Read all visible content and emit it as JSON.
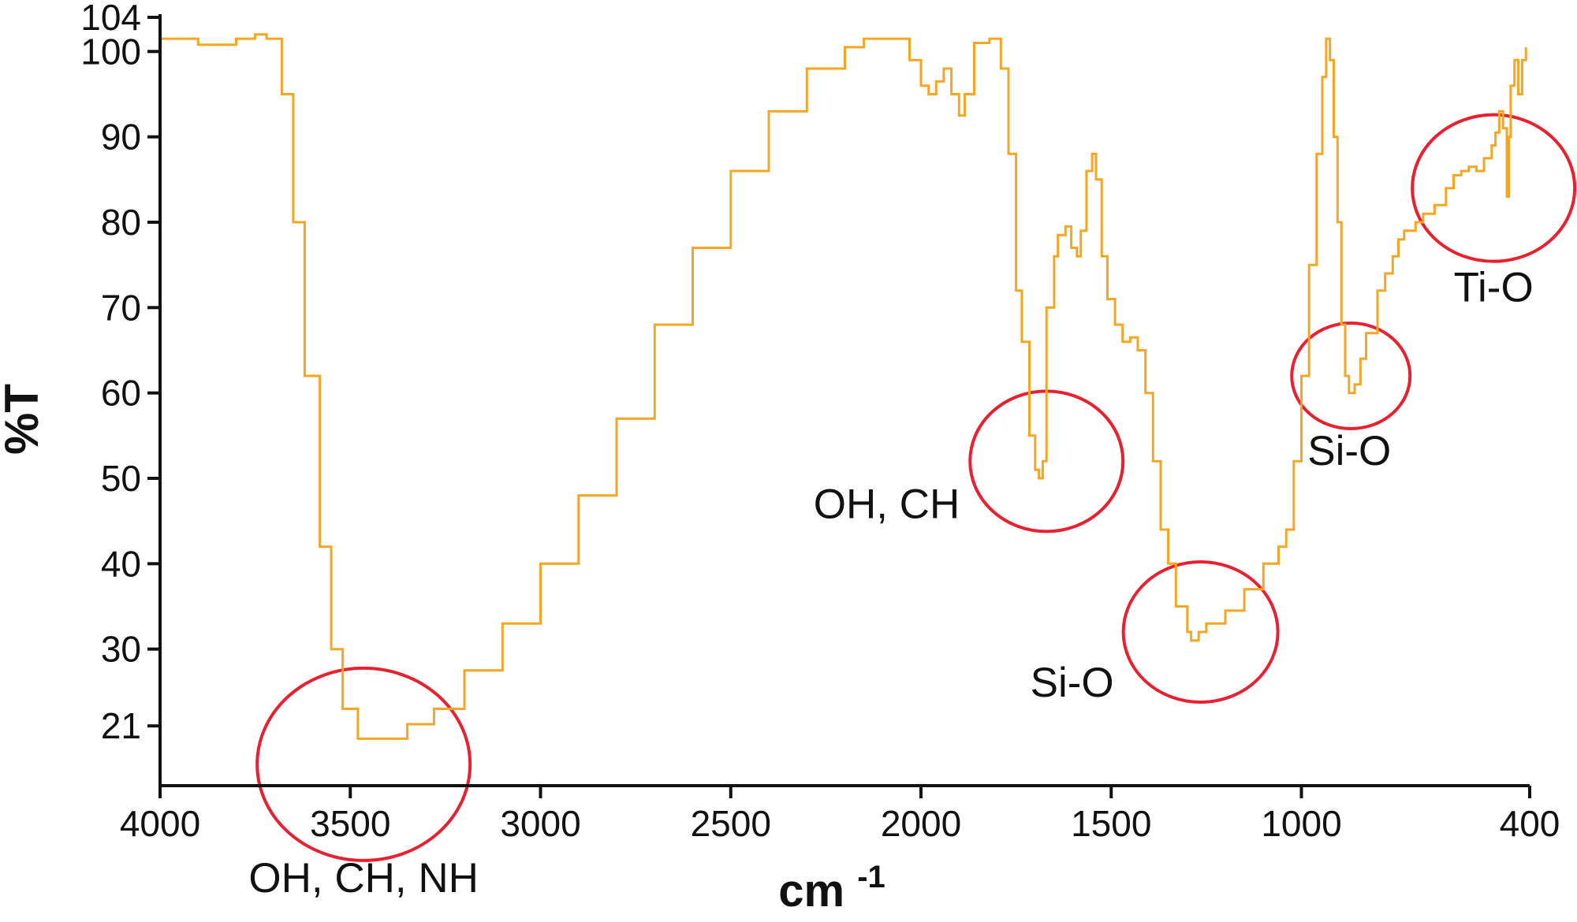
{
  "colors": {
    "series": "#F5A623",
    "annotation": "#E8202F",
    "axis": "#111111",
    "background": "#ffffff"
  },
  "chart_data": {
    "type": "line",
    "title": "",
    "xlabel": "cm",
    "xlabel_superscript": "-1",
    "ylabel": "%T",
    "xlim": [
      4000,
      400
    ],
    "x_reversed": true,
    "ylim": [
      14,
      104
    ],
    "grid": false,
    "legend": "none",
    "x_ticks": [
      4000,
      3500,
      3000,
      2500,
      2000,
      1500,
      1000,
      400
    ],
    "y_ticks": [
      104,
      100,
      90,
      80,
      70,
      60,
      50,
      40,
      30,
      21
    ],
    "series": [
      {
        "values": [
          [
            4000,
            101.5
          ],
          [
            3900,
            100.8
          ],
          [
            3800,
            101.5
          ],
          [
            3750,
            102
          ],
          [
            3720,
            101.5
          ],
          [
            3680,
            95
          ],
          [
            3650,
            80
          ],
          [
            3620,
            62
          ],
          [
            3580,
            42
          ],
          [
            3550,
            30
          ],
          [
            3520,
            23
          ],
          [
            3480,
            19.5
          ],
          [
            3420,
            19.5
          ],
          [
            3350,
            21.2
          ],
          [
            3280,
            23
          ],
          [
            3200,
            27.5
          ],
          [
            3100,
            33
          ],
          [
            3000,
            40
          ],
          [
            2900,
            48
          ],
          [
            2800,
            57
          ],
          [
            2700,
            68
          ],
          [
            2600,
            77
          ],
          [
            2500,
            86
          ],
          [
            2400,
            93
          ],
          [
            2300,
            98
          ],
          [
            2200,
            100.5
          ],
          [
            2150,
            101.5
          ],
          [
            2070,
            101.5
          ],
          [
            2030,
            99
          ],
          [
            2000,
            96
          ],
          [
            1980,
            95
          ],
          [
            1960,
            96.5
          ],
          [
            1940,
            98
          ],
          [
            1920,
            95
          ],
          [
            1900,
            92.5
          ],
          [
            1885,
            95
          ],
          [
            1860,
            101
          ],
          [
            1820,
            101.5
          ],
          [
            1800,
            101.5
          ],
          [
            1790,
            98
          ],
          [
            1770,
            88
          ],
          [
            1750,
            72
          ],
          [
            1735,
            66
          ],
          [
            1715,
            55
          ],
          [
            1700,
            51
          ],
          [
            1690,
            50
          ],
          [
            1680,
            52
          ],
          [
            1670,
            70
          ],
          [
            1650,
            76
          ],
          [
            1640,
            78.5
          ],
          [
            1620,
            79.5
          ],
          [
            1605,
            77
          ],
          [
            1590,
            76
          ],
          [
            1580,
            79
          ],
          [
            1565,
            86
          ],
          [
            1550,
            88
          ],
          [
            1540,
            85
          ],
          [
            1525,
            76
          ],
          [
            1510,
            71
          ],
          [
            1490,
            68
          ],
          [
            1470,
            66
          ],
          [
            1450,
            66.5
          ],
          [
            1430,
            65
          ],
          [
            1410,
            60
          ],
          [
            1390,
            52
          ],
          [
            1370,
            44
          ],
          [
            1350,
            40
          ],
          [
            1330,
            35
          ],
          [
            1300,
            32
          ],
          [
            1290,
            31
          ],
          [
            1270,
            32
          ],
          [
            1250,
            33
          ],
          [
            1200,
            34.5
          ],
          [
            1150,
            37
          ],
          [
            1100,
            40
          ],
          [
            1060,
            42
          ],
          [
            1040,
            44
          ],
          [
            1020,
            52
          ],
          [
            1000,
            62
          ],
          [
            980,
            75
          ],
          [
            960,
            88
          ],
          [
            945,
            97
          ],
          [
            935,
            101.5
          ],
          [
            925,
            99
          ],
          [
            915,
            90
          ],
          [
            905,
            80
          ],
          [
            895,
            68
          ],
          [
            885,
            62
          ],
          [
            875,
            60
          ],
          [
            860,
            61
          ],
          [
            845,
            64
          ],
          [
            830,
            67
          ],
          [
            800,
            72
          ],
          [
            780,
            74
          ],
          [
            760,
            76
          ],
          [
            745,
            78
          ],
          [
            730,
            79
          ],
          [
            700,
            80
          ],
          [
            680,
            81
          ],
          [
            650,
            82
          ],
          [
            620,
            84
          ],
          [
            600,
            85.5
          ],
          [
            580,
            86
          ],
          [
            560,
            86.5
          ],
          [
            540,
            86
          ],
          [
            520,
            87.5
          ],
          [
            500,
            89
          ],
          [
            490,
            90.5
          ],
          [
            480,
            93
          ],
          [
            470,
            91
          ],
          [
            460,
            83
          ],
          [
            455,
            90
          ],
          [
            450,
            96
          ],
          [
            440,
            99
          ],
          [
            430,
            95
          ],
          [
            420,
            99
          ],
          [
            410,
            100.5
          ]
        ]
      }
    ],
    "annotations": [
      {
        "text": "OH, CH, NH",
        "x": 3465,
        "y": 16.5
      },
      {
        "text": "OH, CH",
        "x": 1670,
        "y": 52
      },
      {
        "text": "Si-O",
        "x": 1265,
        "y": 32
      },
      {
        "text": "Si-O",
        "x": 870,
        "y": 62
      },
      {
        "text": "Ti-O",
        "x": 495,
        "y": 84
      }
    ]
  }
}
